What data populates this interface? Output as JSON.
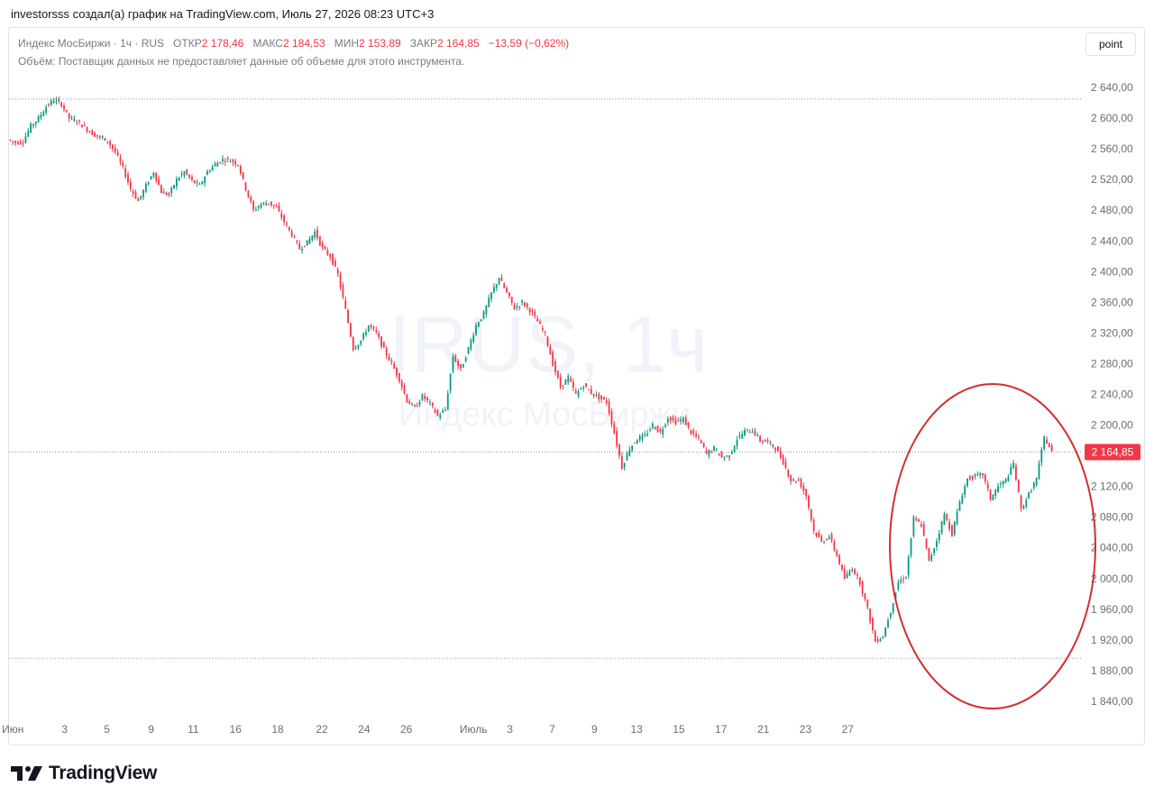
{
  "header": {
    "caption": "investorsss создал(а) график на TradingView.com, Июль 27, 2026 08:23 UTC+3"
  },
  "legend": {
    "symbol": "Индекс МосБиржи · 1ч · RUS",
    "open_label": "ОТКР",
    "open_value": "2 178,46",
    "high_label": "МАКС",
    "high_value": "2 184,53",
    "low_label": "МИН",
    "low_value": "2 153,89",
    "close_label": "ЗАКР",
    "close_value": "2 164,85",
    "change": "−13,59 (−0,62%)",
    "volume_note": "Объём: Поставщик данных не предоставляет данные об объеме для этого инструмента."
  },
  "toolbar": {
    "point_label": "point"
  },
  "watermark": {
    "line1": "IRUS, 1ч",
    "line2": "Индекс МосБиржи"
  },
  "brand": {
    "logo_text": "TradingView"
  },
  "colors": {
    "up": "#089981",
    "down": "#f23645",
    "annotation": "#d32f2f",
    "grid_dotted": "#9598a1",
    "axis_text": "#6a6d78"
  },
  "chart_data": {
    "type": "candlestick",
    "title": "Индекс МосБиржи · 1ч · RUS",
    "ylim": [
      1820,
      2660
    ],
    "y_ticks": [
      "2 640,00",
      "2 600,00",
      "2 560,00",
      "2 520,00",
      "2 480,00",
      "2 440,00",
      "2 400,00",
      "2 360,00",
      "2 320,00",
      "2 280,00",
      "2 240,00",
      "2 200,00",
      "2 160,00",
      "2 120,00",
      "2 080,00",
      "2 040,00",
      "2 000,00",
      "1 960,00",
      "1 920,00",
      "1 880,00",
      "1 840,00"
    ],
    "x_ticks": [
      "Июн",
      "3",
      "5",
      "9",
      "11",
      "16",
      "18",
      "22",
      "24",
      "26",
      "Июль",
      "3",
      "7",
      "9",
      "13",
      "15",
      "17",
      "21",
      "23",
      "27"
    ],
    "last_price": "2 164,85",
    "reference_lines": [
      2625,
      2164.85,
      1896
    ],
    "series": [
      {
        "x": 1,
        "y": 2572
      },
      {
        "x": 5,
        "y": 2568
      },
      {
        "x": 9,
        "y": 2570
      },
      {
        "x": 13,
        "y": 2590
      },
      {
        "x": 17,
        "y": 2600
      },
      {
        "x": 21,
        "y": 2615
      },
      {
        "x": 25,
        "y": 2624
      },
      {
        "x": 29,
        "y": 2618
      },
      {
        "x": 33,
        "y": 2600
      },
      {
        "x": 37,
        "y": 2596
      },
      {
        "x": 41,
        "y": 2588
      },
      {
        "x": 45,
        "y": 2580
      },
      {
        "x": 49,
        "y": 2575
      },
      {
        "x": 53,
        "y": 2570
      },
      {
        "x": 57,
        "y": 2556
      },
      {
        "x": 61,
        "y": 2535
      },
      {
        "x": 65,
        "y": 2508
      },
      {
        "x": 69,
        "y": 2492
      },
      {
        "x": 73,
        "y": 2512
      },
      {
        "x": 77,
        "y": 2530
      },
      {
        "x": 81,
        "y": 2504
      },
      {
        "x": 85,
        "y": 2500
      },
      {
        "x": 89,
        "y": 2520
      },
      {
        "x": 93,
        "y": 2530
      },
      {
        "x": 97,
        "y": 2518
      },
      {
        "x": 101,
        "y": 2512
      },
      {
        "x": 105,
        "y": 2530
      },
      {
        "x": 109,
        "y": 2540
      },
      {
        "x": 113,
        "y": 2546
      },
      {
        "x": 117,
        "y": 2545
      },
      {
        "x": 121,
        "y": 2540
      },
      {
        "x": 125,
        "y": 2508
      },
      {
        "x": 129,
        "y": 2480
      },
      {
        "x": 133,
        "y": 2488
      },
      {
        "x": 137,
        "y": 2490
      },
      {
        "x": 141,
        "y": 2483
      },
      {
        "x": 145,
        "y": 2465
      },
      {
        "x": 149,
        "y": 2448
      },
      {
        "x": 153,
        "y": 2430
      },
      {
        "x": 157,
        "y": 2438
      },
      {
        "x": 161,
        "y": 2452
      },
      {
        "x": 165,
        "y": 2430
      },
      {
        "x": 169,
        "y": 2420
      },
      {
        "x": 173,
        "y": 2396
      },
      {
        "x": 177,
        "y": 2350
      },
      {
        "x": 181,
        "y": 2300
      },
      {
        "x": 185,
        "y": 2310
      },
      {
        "x": 189,
        "y": 2330
      },
      {
        "x": 193,
        "y": 2320
      },
      {
        "x": 197,
        "y": 2298
      },
      {
        "x": 201,
        "y": 2280
      },
      {
        "x": 205,
        "y": 2260
      },
      {
        "x": 209,
        "y": 2232
      },
      {
        "x": 213,
        "y": 2222
      },
      {
        "x": 217,
        "y": 2238
      },
      {
        "x": 221,
        "y": 2228
      },
      {
        "x": 225,
        "y": 2212
      },
      {
        "x": 229,
        "y": 2220
      },
      {
        "x": 233,
        "y": 2290
      },
      {
        "x": 237,
        "y": 2272
      },
      {
        "x": 241,
        "y": 2300
      },
      {
        "x": 245,
        "y": 2330
      },
      {
        "x": 249,
        "y": 2345
      },
      {
        "x": 253,
        "y": 2372
      },
      {
        "x": 257,
        "y": 2392
      },
      {
        "x": 261,
        "y": 2372
      },
      {
        "x": 265,
        "y": 2352
      },
      {
        "x": 269,
        "y": 2360
      },
      {
        "x": 273,
        "y": 2350
      },
      {
        "x": 277,
        "y": 2335
      },
      {
        "x": 281,
        "y": 2318
      },
      {
        "x": 285,
        "y": 2280
      },
      {
        "x": 289,
        "y": 2250
      },
      {
        "x": 293,
        "y": 2262
      },
      {
        "x": 297,
        "y": 2240
      },
      {
        "x": 301,
        "y": 2252
      },
      {
        "x": 305,
        "y": 2242
      },
      {
        "x": 309,
        "y": 2236
      },
      {
        "x": 313,
        "y": 2230
      },
      {
        "x": 317,
        "y": 2190
      },
      {
        "x": 321,
        "y": 2145
      },
      {
        "x": 325,
        "y": 2170
      },
      {
        "x": 329,
        "y": 2182
      },
      {
        "x": 333,
        "y": 2186
      },
      {
        "x": 337,
        "y": 2200
      },
      {
        "x": 341,
        "y": 2190
      },
      {
        "x": 345,
        "y": 2210
      },
      {
        "x": 349,
        "y": 2204
      },
      {
        "x": 353,
        "y": 2208
      },
      {
        "x": 357,
        "y": 2190
      },
      {
        "x": 361,
        "y": 2182
      },
      {
        "x": 365,
        "y": 2163
      },
      {
        "x": 369,
        "y": 2170
      },
      {
        "x": 373,
        "y": 2158
      },
      {
        "x": 377,
        "y": 2160
      },
      {
        "x": 381,
        "y": 2182
      },
      {
        "x": 385,
        "y": 2192
      },
      {
        "x": 389,
        "y": 2193
      },
      {
        "x": 393,
        "y": 2180
      },
      {
        "x": 397,
        "y": 2178
      },
      {
        "x": 401,
        "y": 2170
      },
      {
        "x": 405,
        "y": 2152
      },
      {
        "x": 409,
        "y": 2128
      },
      {
        "x": 413,
        "y": 2128
      },
      {
        "x": 417,
        "y": 2108
      },
      {
        "x": 421,
        "y": 2062
      },
      {
        "x": 425,
        "y": 2048
      },
      {
        "x": 429,
        "y": 2055
      },
      {
        "x": 433,
        "y": 2030
      },
      {
        "x": 437,
        "y": 2000
      },
      {
        "x": 441,
        "y": 2014
      },
      {
        "x": 445,
        "y": 1995
      },
      {
        "x": 449,
        "y": 1960
      },
      {
        "x": 453,
        "y": 1918
      },
      {
        "x": 457,
        "y": 1925
      },
      {
        "x": 461,
        "y": 1958
      },
      {
        "x": 465,
        "y": 1995
      },
      {
        "x": 469,
        "y": 2003
      },
      {
        "x": 473,
        "y": 2078
      },
      {
        "x": 477,
        "y": 2070
      },
      {
        "x": 481,
        "y": 2022
      },
      {
        "x": 485,
        "y": 2050
      },
      {
        "x": 489,
        "y": 2084
      },
      {
        "x": 493,
        "y": 2058
      },
      {
        "x": 497,
        "y": 2100
      },
      {
        "x": 501,
        "y": 2130
      },
      {
        "x": 505,
        "y": 2133
      },
      {
        "x": 509,
        "y": 2136
      },
      {
        "x": 513,
        "y": 2104
      },
      {
        "x": 517,
        "y": 2120
      },
      {
        "x": 521,
        "y": 2128
      },
      {
        "x": 525,
        "y": 2150
      },
      {
        "x": 529,
        "y": 2090
      },
      {
        "x": 533,
        "y": 2110
      },
      {
        "x": 537,
        "y": 2130
      },
      {
        "x": 541,
        "y": 2184
      },
      {
        "x": 545,
        "y": 2164.85
      }
    ]
  }
}
